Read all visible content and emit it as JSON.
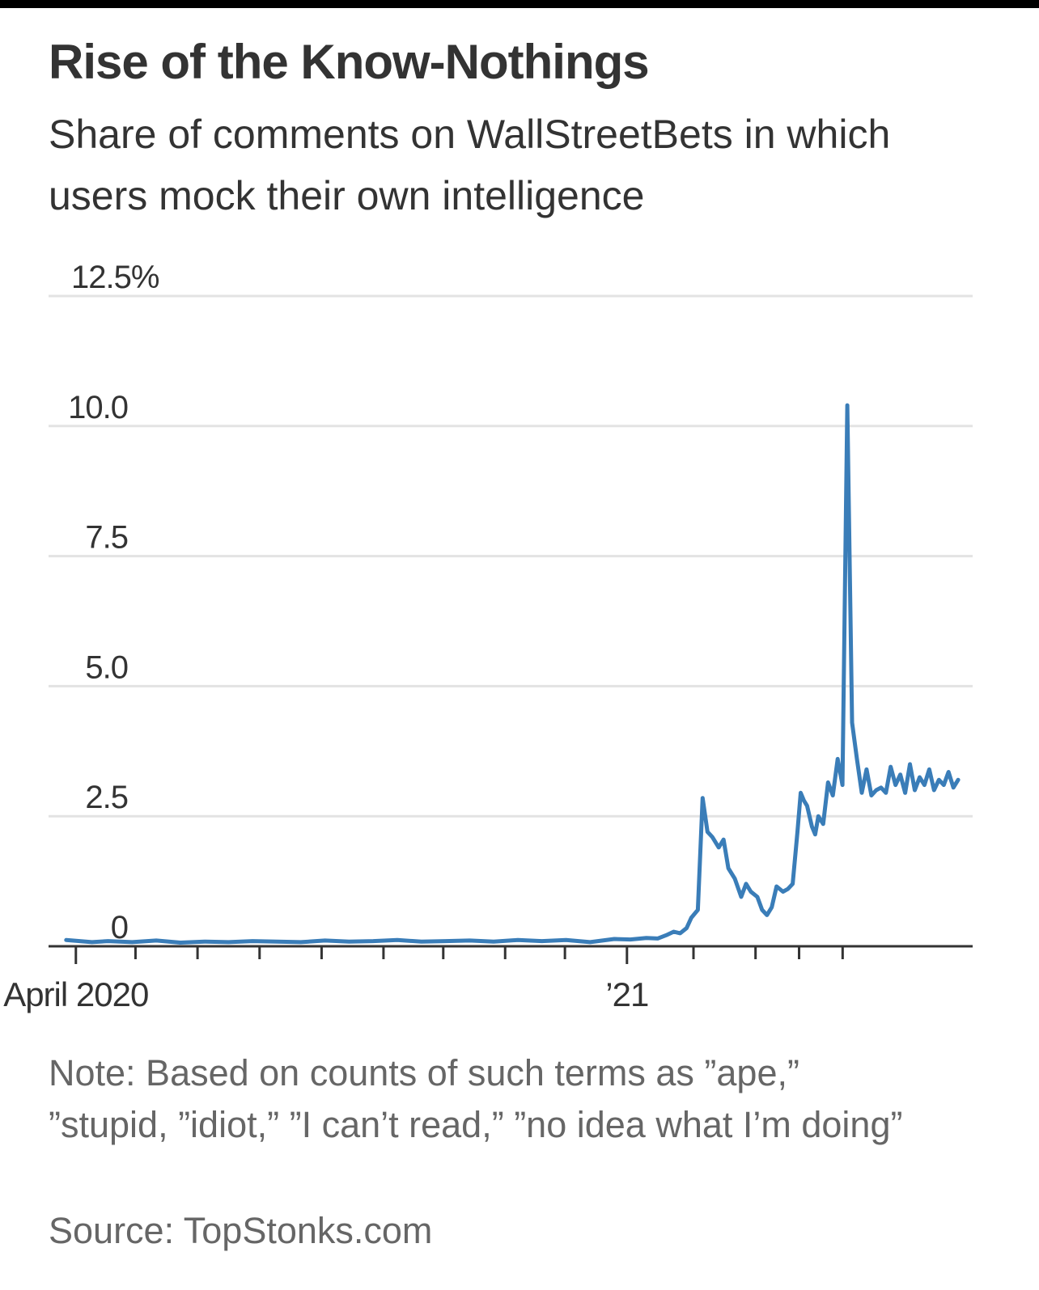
{
  "title": "Rise of the Know-Nothings",
  "subtitle": "Share of comments on WallStreetBets in which users mock their own intelligence",
  "note": "Note: Based on counts of such terms as ”ape,” ”stupid, ”idiot,” ”I can’t read,” ”no idea what I’m doing”",
  "source": "Source: TopStonks.com",
  "colors": {
    "line": "#3a7db8",
    "grid": "#e3e3e3",
    "axis": "#333333",
    "title": "#333333",
    "note": "#666666"
  },
  "chart_data": {
    "type": "line",
    "title": "Rise of the Know-Nothings",
    "subtitle": "Share of comments on WallStreetBets in which users mock their own intelligence",
    "xlabel": "",
    "ylabel": "",
    "x_unit": "weeks since Apr 1, 2020",
    "xlim": [
      -1.7,
      55.8
    ],
    "ylim": [
      0,
      12.5
    ],
    "grid": true,
    "legend": "none",
    "y_ticks": [
      {
        "value": 0,
        "label": "0"
      },
      {
        "value": 2.5,
        "label": "2.5"
      },
      {
        "value": 5,
        "label": "5.0"
      },
      {
        "value": 7.5,
        "label": "7.5"
      },
      {
        "value": 10,
        "label": "10.0"
      },
      {
        "value": 12.5,
        "label": "12.5%"
      }
    ],
    "x_ticks": [
      0,
      3.71,
      7.57,
      11.43,
      15.29,
      19.14,
      22.86,
      26.71,
      30.43,
      34.29,
      38.43,
      42.29,
      45,
      47.71
    ],
    "x_tick_labels": [
      {
        "value": 0,
        "label": "April 2020"
      },
      {
        "value": 34.29,
        "label": "’21"
      }
    ],
    "series": [
      {
        "name": "Share of comments",
        "x": [
          -0.6,
          1,
          2,
          3.5,
          5,
          6.5,
          8,
          9.5,
          11,
          12.5,
          14,
          15.5,
          17,
          18.5,
          20,
          21.5,
          23,
          24.5,
          26,
          27.5,
          29,
          30.5,
          32,
          33.5,
          34.5,
          35.5,
          36.2,
          36.8,
          37.2,
          37.6,
          38,
          38.3,
          38.7,
          39,
          39.3,
          39.6,
          40,
          40.3,
          40.6,
          41,
          41.4,
          41.7,
          42,
          42.4,
          42.7,
          43,
          43.3,
          43.6,
          44,
          44.3,
          44.6,
          44.9,
          45.1,
          45.3,
          45.5,
          45.8,
          46,
          46.2,
          46.5,
          46.8,
          47.1,
          47.4,
          47.7,
          48,
          48.3,
          48.6,
          48.9,
          49.2,
          49.5,
          49.8,
          50.1,
          50.4,
          50.7,
          51,
          51.3,
          51.6,
          51.9,
          52.2,
          52.5,
          52.8,
          53.1,
          53.4,
          53.7,
          54,
          54.3,
          54.6,
          54.9
        ],
        "values": [
          0.12,
          0.08,
          0.1,
          0.08,
          0.11,
          0.07,
          0.09,
          0.08,
          0.1,
          0.09,
          0.08,
          0.11,
          0.09,
          0.1,
          0.12,
          0.09,
          0.1,
          0.11,
          0.09,
          0.12,
          0.1,
          0.12,
          0.08,
          0.14,
          0.13,
          0.16,
          0.15,
          0.22,
          0.28,
          0.25,
          0.35,
          0.55,
          0.7,
          2.85,
          2.2,
          2.1,
          1.9,
          2.05,
          1.5,
          1.3,
          0.95,
          1.2,
          1.05,
          0.95,
          0.7,
          0.6,
          0.75,
          1.15,
          1.05,
          1.1,
          1.2,
          2.2,
          2.95,
          2.8,
          2.7,
          2.3,
          2.15,
          2.5,
          2.35,
          3.15,
          2.9,
          3.6,
          3.1,
          10.4,
          4.3,
          3.6,
          2.95,
          3.4,
          2.9,
          3.0,
          3.05,
          2.95,
          3.45,
          3.1,
          3.3,
          2.95,
          3.5,
          3.0,
          3.25,
          3.1,
          3.4,
          3.0,
          3.2,
          3.1,
          3.35,
          3.05,
          3.2
        ]
      }
    ]
  }
}
